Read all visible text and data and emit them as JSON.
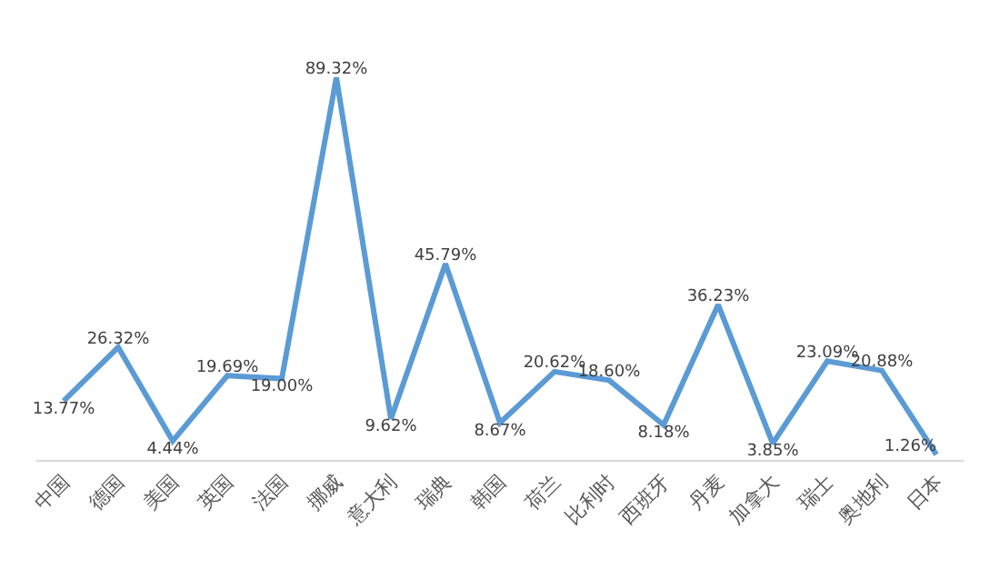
{
  "chart_data": {
    "type": "line",
    "categories": [
      "中国",
      "德国",
      "美国",
      "英国",
      "法国",
      "挪威",
      "意大利",
      "瑞典",
      "韩国",
      "荷兰",
      "比利时",
      "西班牙",
      "丹麦",
      "加拿大",
      "瑞士",
      "奥地利",
      "日本"
    ],
    "series": [
      {
        "color": "#5b9bd5",
        "values": [
          13.77,
          26.32,
          4.44,
          19.69,
          19.0,
          89.32,
          9.62,
          45.79,
          8.67,
          20.62,
          18.6,
          8.18,
          36.23,
          3.85,
          23.09,
          20.88,
          1.26
        ],
        "value_labels": [
          "13.77%",
          "26.32%",
          "4.44%",
          "19.69%",
          "19.00%",
          "89.32%",
          "9.62%",
          "45.79%",
          "8.67%",
          "20.62%",
          "18.60%",
          "8.18%",
          "36.23%",
          "3.85%",
          "23.09%",
          "20.88%",
          "1.26%"
        ]
      }
    ],
    "legend": false,
    "marker": "none",
    "line_style": "solid"
  }
}
